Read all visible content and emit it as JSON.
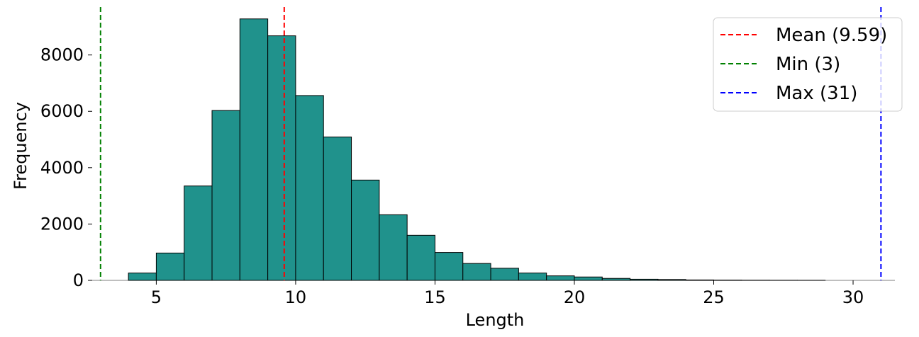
{
  "chart_data": {
    "type": "bar",
    "title": "",
    "xlabel": "Length",
    "ylabel": "Frequency",
    "xlim": [
      2.7,
      31.5
    ],
    "ylim": [
      0,
      9700
    ],
    "x_ticks": [
      5,
      10,
      15,
      20,
      25,
      30
    ],
    "y_ticks": [
      0,
      2000,
      4000,
      6000,
      8000
    ],
    "bar_color": "#20928c",
    "bar_edge_color": "#000000",
    "bins": [
      {
        "start": 4,
        "end": 5,
        "value": 260
      },
      {
        "start": 5,
        "end": 6,
        "value": 970
      },
      {
        "start": 6,
        "end": 7,
        "value": 3350
      },
      {
        "start": 7,
        "end": 8,
        "value": 6030
      },
      {
        "start": 8,
        "end": 9,
        "value": 9280
      },
      {
        "start": 9,
        "end": 10,
        "value": 8680
      },
      {
        "start": 10,
        "end": 11,
        "value": 6560
      },
      {
        "start": 11,
        "end": 12,
        "value": 5090
      },
      {
        "start": 12,
        "end": 13,
        "value": 3560
      },
      {
        "start": 13,
        "end": 14,
        "value": 2330
      },
      {
        "start": 14,
        "end": 15,
        "value": 1600
      },
      {
        "start": 15,
        "end": 16,
        "value": 990
      },
      {
        "start": 16,
        "end": 17,
        "value": 600
      },
      {
        "start": 17,
        "end": 18,
        "value": 430
      },
      {
        "start": 18,
        "end": 19,
        "value": 260
      },
      {
        "start": 19,
        "end": 20,
        "value": 160
      },
      {
        "start": 20,
        "end": 21,
        "value": 120
      },
      {
        "start": 21,
        "end": 22,
        "value": 70
      },
      {
        "start": 22,
        "end": 23,
        "value": 40
      },
      {
        "start": 23,
        "end": 24,
        "value": 30
      },
      {
        "start": 24,
        "end": 25,
        "value": 15
      },
      {
        "start": 25,
        "end": 26,
        "value": 10
      },
      {
        "start": 26,
        "end": 27,
        "value": 6
      },
      {
        "start": 27,
        "end": 28,
        "value": 4
      },
      {
        "start": 28,
        "end": 29,
        "value": 3
      }
    ],
    "reference_lines": [
      {
        "name": "Mean (9.59)",
        "x": 9.59,
        "color": "#ff0000",
        "style": "dashed"
      },
      {
        "name": "Min (3)",
        "x": 3,
        "color": "#008000",
        "style": "dashed"
      },
      {
        "name": "Max (31)",
        "x": 31,
        "color": "#0000ff",
        "style": "dashed"
      }
    ],
    "legend": {
      "position": "top-right"
    },
    "grid": false
  }
}
